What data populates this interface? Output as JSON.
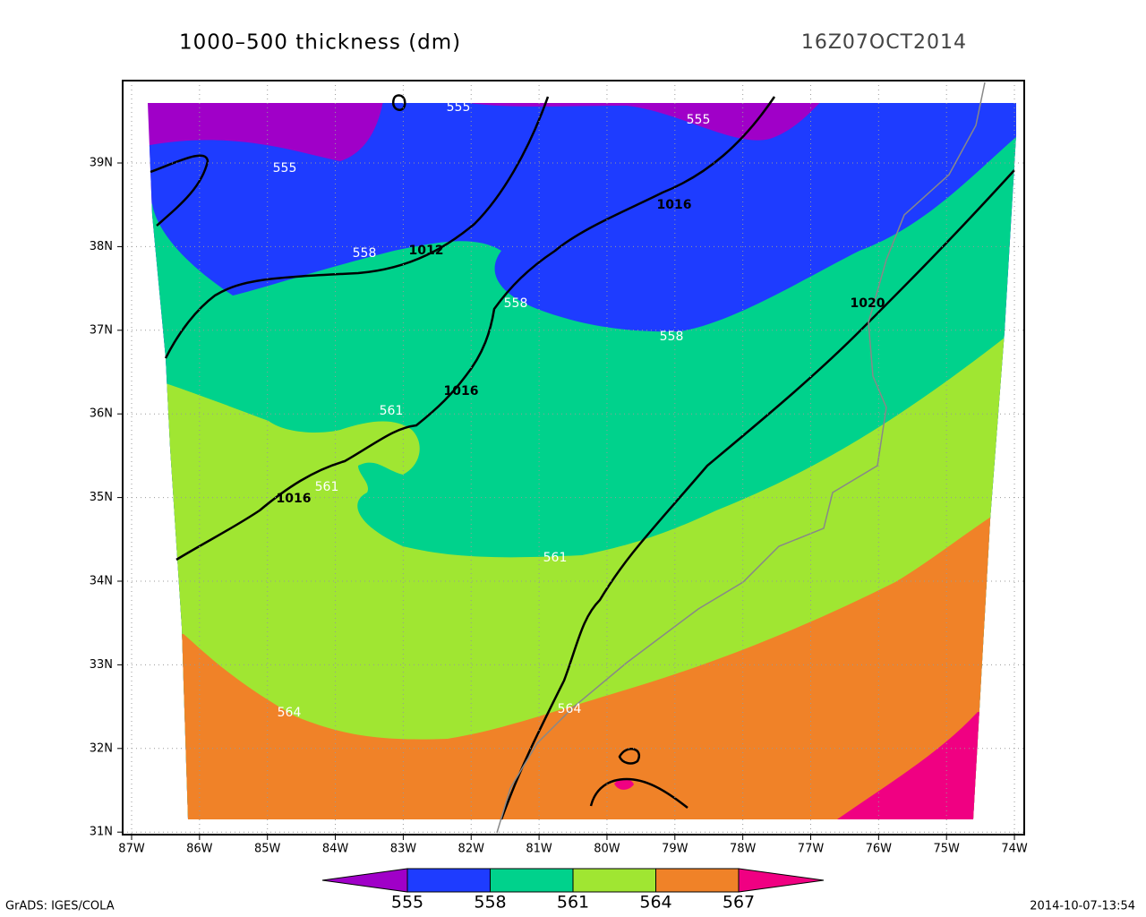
{
  "header": {
    "title": "1000–500 thickness (dm)",
    "valid_time": "16Z07OCT2014"
  },
  "map": {
    "lon_labels": [
      "87W",
      "86W",
      "85W",
      "84W",
      "83W",
      "82W",
      "81W",
      "80W",
      "79W",
      "78W",
      "77W",
      "76W",
      "75W",
      "74W"
    ],
    "lat_labels": [
      "39N",
      "38N",
      "37N",
      "36N",
      "35N",
      "34N",
      "33N",
      "32N",
      "31N"
    ],
    "region_colors": [
      "#a000c8",
      "#1e3cff",
      "#00d28c",
      "#a0e632",
      "#f08228",
      "#f00082"
    ],
    "thickness_labels": [
      "555",
      "555",
      "555",
      "558",
      "558",
      "558",
      "561",
      "561",
      "561",
      "564",
      "564"
    ],
    "pressure_labels": [
      "1012",
      "1016",
      "1016",
      "1016",
      "1020"
    ]
  },
  "colorbar": {
    "colors": [
      "#a000c8",
      "#1e3cff",
      "#00d28c",
      "#a0e632",
      "#f08228",
      "#f00082"
    ],
    "labels": [
      "555",
      "558",
      "561",
      "564",
      "567"
    ]
  },
  "footer": {
    "source": "GrADS: IGES/COLA",
    "timestamp": "2014-10-07-13:54"
  }
}
